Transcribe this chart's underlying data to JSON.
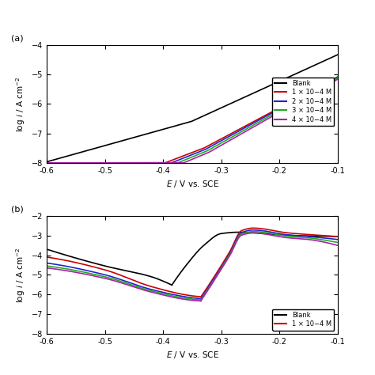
{
  "panel_a": {
    "xlabel": "E / V vs. SCE",
    "ylabel": "log i / A cm−2",
    "xlim": [
      -0.6,
      -0.1
    ],
    "ylim": [
      -8,
      -4
    ],
    "xticks": [
      -0.6,
      -0.5,
      -0.4,
      -0.3,
      -0.2,
      -0.1
    ],
    "yticks": [
      -8,
      -7,
      -6,
      -5,
      -4
    ]
  },
  "panel_b": {
    "xlabel": "E / V vs. SCE",
    "ylabel": "log i / A cm−2",
    "xlim": [
      -0.6,
      -0.1
    ],
    "ylim": [
      -8,
      -2
    ],
    "xticks": [
      -0.6,
      -0.5,
      -0.4,
      -0.3,
      -0.2,
      -0.1
    ],
    "yticks": [
      -8,
      -7,
      -6,
      -5,
      -4,
      -3,
      -2
    ]
  },
  "legend_labels": [
    "Blank",
    "1 × 10−4 M",
    "2 × 10−4 M",
    "3 × 10−4 M",
    "4 × 10−4 M"
  ],
  "legend_colors": [
    "#000000",
    "#cc0000",
    "#2222cc",
    "#22aa22",
    "#aa22aa"
  ],
  "lw": 1.2
}
